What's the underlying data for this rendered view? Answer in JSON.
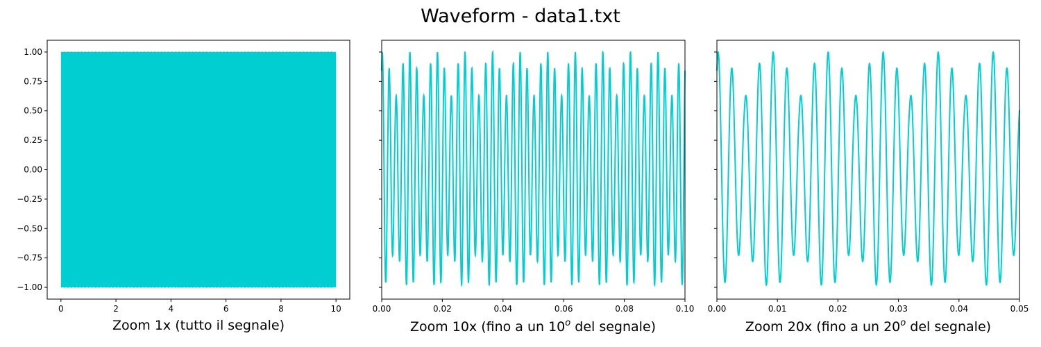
{
  "title": "Waveform - data1.txt",
  "colors": {
    "line": "#00CED1",
    "axis": "#000000",
    "background": "#ffffff"
  },
  "chart_data": [
    {
      "type": "line",
      "xlabel": "Zoom 1x (tutto il segnale)",
      "xlabel_parts": {
        "main": "Zoom 1x (tutto il segnale)",
        "sup": "",
        "tail": ""
      },
      "xlim": [
        -0.5,
        10.5
      ],
      "ylim": [
        -1.1,
        1.1
      ],
      "xticks": [
        0,
        2,
        4,
        6,
        8,
        10
      ],
      "xtick_labels": [
        "0",
        "2",
        "4",
        "6",
        "8",
        "10"
      ],
      "yticks": [
        1.0,
        0.75,
        0.5,
        0.25,
        0.0,
        -0.25,
        -0.5,
        -0.75,
        -1.0
      ],
      "ytick_labels": [
        "1.00",
        "0.75",
        "0.50",
        "0.25",
        "0.00",
        "−0.25",
        "−0.50",
        "−0.75",
        "−1.00"
      ],
      "show_ytick_labels": true,
      "grid": false,
      "signal": {
        "x_start": 0,
        "x_end": 10,
        "amplitude": 1.0,
        "rendered_as": "dense oscillation filling [-1, 1]"
      }
    },
    {
      "type": "line",
      "xlabel": "Zoom 10x (fino a un 10o del segnale)",
      "xlabel_parts": {
        "main": "Zoom 10x (fino a un 10",
        "sup": "o",
        "tail": " del segnale)"
      },
      "xlim": [
        0.0,
        0.1
      ],
      "ylim": [
        -1.1,
        1.1
      ],
      "xticks": [
        0.0,
        0.02,
        0.04,
        0.06,
        0.08,
        0.1
      ],
      "xtick_labels": [
        "0.00",
        "0.02",
        "0.04",
        "0.06",
        "0.08",
        "0.10"
      ],
      "yticks": [
        1.0,
        0.75,
        0.5,
        0.25,
        0.0,
        -0.25,
        -0.5,
        -0.75,
        -1.0
      ],
      "show_ytick_labels": false,
      "grid": false,
      "signal": {
        "frequency_hz": 440,
        "envelope_frequency_hz": 55,
        "phase": 1.0,
        "envelope_depth": 0.4
      }
    },
    {
      "type": "line",
      "xlabel": "Zoom 20x (fino a un 20o del segnale)",
      "xlabel_parts": {
        "main": "Zoom 20x (fino a un 20",
        "sup": "o",
        "tail": " del segnale)"
      },
      "xlim": [
        0.0,
        0.05
      ],
      "ylim": [
        -1.1,
        1.1
      ],
      "xticks": [
        0.0,
        0.01,
        0.02,
        0.03,
        0.04,
        0.05
      ],
      "xtick_labels": [
        "0.00",
        "0.01",
        "0.02",
        "0.03",
        "0.04",
        "0.05"
      ],
      "yticks": [
        1.0,
        0.75,
        0.5,
        0.25,
        0.0,
        -0.25,
        -0.5,
        -0.75,
        -1.0
      ],
      "show_ytick_labels": false,
      "grid": false,
      "signal": {
        "frequency_hz": 440,
        "envelope_frequency_hz": 55,
        "phase": 1.0,
        "envelope_depth": 0.4
      }
    }
  ]
}
